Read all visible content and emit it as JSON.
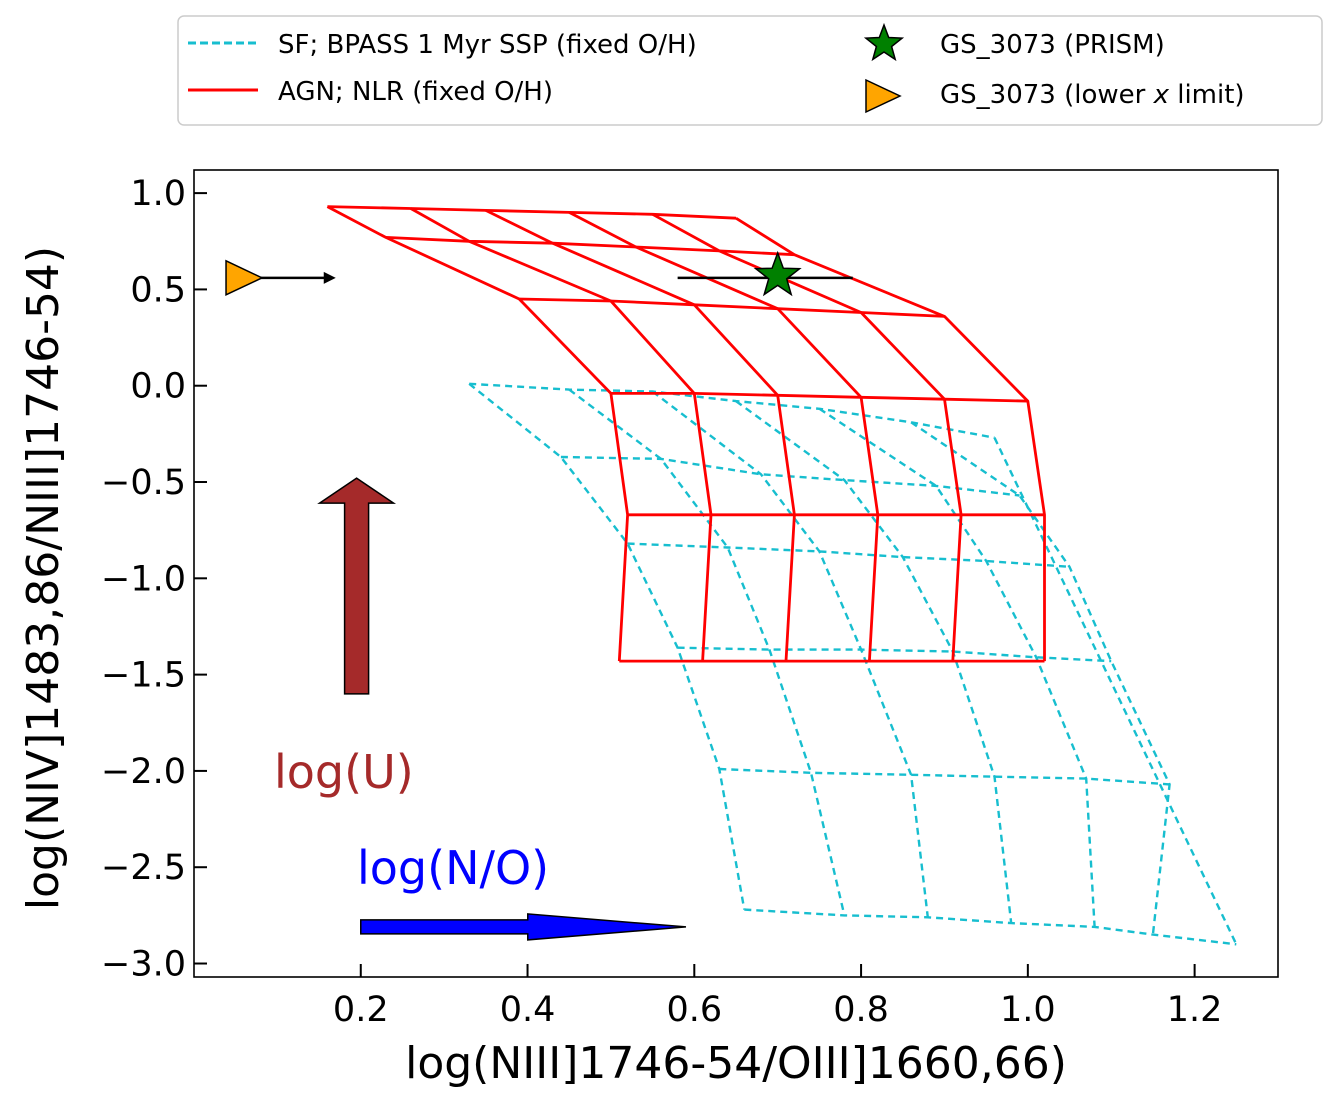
{
  "chart_data": {
    "type": "line",
    "xlabel": "log(NIII]1746-54/OIII]1660,66)",
    "ylabel": "log(NIV]1483,86/NIII]1746-54)",
    "xlim": [
      0.0,
      1.3
    ],
    "ylim": [
      -3.07,
      1.12
    ],
    "xticks": [
      0.2,
      0.4,
      0.6,
      0.8,
      1.0,
      1.2
    ],
    "xtick_labels": [
      "0.2",
      "0.4",
      "0.6",
      "0.8",
      "1.0",
      "1.2"
    ],
    "yticks": [
      1.0,
      0.5,
      0.0,
      -0.5,
      -1.0,
      -1.5,
      -2.0,
      -2.5,
      -3.0
    ],
    "ytick_labels": [
      "1.0",
      "0.5",
      "0.0",
      "−0.5",
      "−1.0",
      "−1.5",
      "−2.0",
      "−2.5",
      "−3.0"
    ],
    "legend_position": "top, outside the axes",
    "legend": [
      {
        "label": "SF; BPASS 1 Myr SSP (fixed O/H)",
        "kind": "line",
        "style": "dashed",
        "color": "#17becf"
      },
      {
        "label": "AGN; NLR (fixed O/H)",
        "kind": "line",
        "style": "solid",
        "color": "#ff0000"
      },
      {
        "label": "GS_3073 (PRISM)",
        "kind": "marker",
        "marker": "star",
        "color": "#008000"
      },
      {
        "label_parts": [
          "GS_3073 (lower ",
          "x",
          " limit)"
        ],
        "kind": "marker",
        "marker": "triangle-right",
        "color": "#ffa500"
      }
    ],
    "series": [
      {
        "name": "SF; BPASS 1 Myr SSP (fixed O/H)",
        "color": "#17becf",
        "style": "dashed",
        "grid": [
          [
            [
              0.33,
              0.01
            ],
            [
              0.45,
              -0.02
            ],
            [
              0.55,
              -0.03
            ],
            [
              0.65,
              -0.08
            ],
            [
              0.75,
              -0.12
            ],
            [
              0.86,
              -0.19
            ],
            [
              0.96,
              -0.27
            ]
          ],
          [
            [
              0.44,
              -0.37
            ],
            [
              0.56,
              -0.38
            ],
            [
              0.68,
              -0.46
            ],
            [
              0.78,
              -0.49
            ],
            [
              0.89,
              -0.52
            ],
            [
              0.99,
              -0.57
            ]
          ],
          [
            [
              0.52,
              -0.82
            ],
            [
              0.64,
              -0.84
            ],
            [
              0.75,
              -0.86
            ],
            [
              0.85,
              -0.89
            ],
            [
              0.95,
              -0.91
            ],
            [
              1.05,
              -0.94
            ]
          ],
          [
            [
              0.58,
              -1.36
            ],
            [
              0.69,
              -1.37
            ],
            [
              0.8,
              -1.37
            ],
            [
              0.91,
              -1.38
            ],
            [
              1.01,
              -1.41
            ],
            [
              1.1,
              -1.43
            ]
          ],
          [
            [
              0.63,
              -1.99
            ],
            [
              0.74,
              -2.01
            ],
            [
              0.86,
              -2.02
            ],
            [
              0.96,
              -2.03
            ],
            [
              1.07,
              -2.04
            ],
            [
              1.17,
              -2.07
            ]
          ],
          [
            [
              0.66,
              -2.72
            ],
            [
              0.78,
              -2.75
            ],
            [
              0.88,
              -2.76
            ],
            [
              0.98,
              -2.79
            ],
            [
              1.08,
              -2.81
            ],
            [
              1.15,
              -2.85
            ],
            [
              1.25,
              -2.9
            ]
          ]
        ]
      },
      {
        "name": "AGN; NLR (fixed O/H)",
        "color": "#ff0000",
        "style": "solid",
        "grid": [
          [
            [
              0.16,
              0.93
            ],
            [
              0.26,
              0.92
            ],
            [
              0.35,
              0.91
            ],
            [
              0.45,
              0.9
            ],
            [
              0.55,
              0.89
            ],
            [
              0.65,
              0.87
            ]
          ],
          [
            [
              0.23,
              0.77
            ],
            [
              0.33,
              0.75
            ],
            [
              0.43,
              0.74
            ],
            [
              0.53,
              0.72
            ],
            [
              0.63,
              0.7
            ],
            [
              0.72,
              0.68
            ]
          ],
          [
            [
              0.39,
              0.45
            ],
            [
              0.5,
              0.44
            ],
            [
              0.6,
              0.42
            ],
            [
              0.7,
              0.4
            ],
            [
              0.8,
              0.38
            ],
            [
              0.9,
              0.36
            ]
          ],
          [
            [
              0.5,
              -0.04
            ],
            [
              0.6,
              -0.04
            ],
            [
              0.7,
              -0.05
            ],
            [
              0.8,
              -0.06
            ],
            [
              0.9,
              -0.07
            ],
            [
              1.0,
              -0.08
            ]
          ],
          [
            [
              0.52,
              -0.67
            ],
            [
              0.62,
              -0.67
            ],
            [
              0.72,
              -0.67
            ],
            [
              0.82,
              -0.67
            ],
            [
              0.92,
              -0.67
            ],
            [
              1.02,
              -0.67
            ]
          ],
          [
            [
              0.51,
              -1.43
            ],
            [
              0.61,
              -1.43
            ],
            [
              0.71,
              -1.43
            ],
            [
              0.81,
              -1.43
            ],
            [
              0.91,
              -1.43
            ],
            [
              1.02,
              -1.43
            ]
          ]
        ]
      }
    ],
    "points": [
      {
        "name": "GS_3073 (PRISM)",
        "x": 0.7,
        "y": 0.56,
        "xerr": [
          0.12,
          0.09
        ],
        "marker": "star",
        "color": "#008000"
      },
      {
        "name": "GS_3073 (lower x limit)",
        "x": 0.06,
        "y": 0.56,
        "marker": "triangle-right",
        "color": "#ffa500",
        "limit_arrow_to_x": 0.17
      }
    ],
    "annotations": [
      {
        "text": "log(U)",
        "color": "#a52a2a",
        "arrow_direction": "up",
        "arrow_x": 0.195,
        "arrow_y": [
          -1.6,
          -0.48
        ]
      },
      {
        "text": "log(N/O)",
        "color": "#0000ff",
        "arrow_direction": "right",
        "arrow_y": -2.81,
        "arrow_x": [
          0.2,
          0.59
        ]
      }
    ]
  }
}
